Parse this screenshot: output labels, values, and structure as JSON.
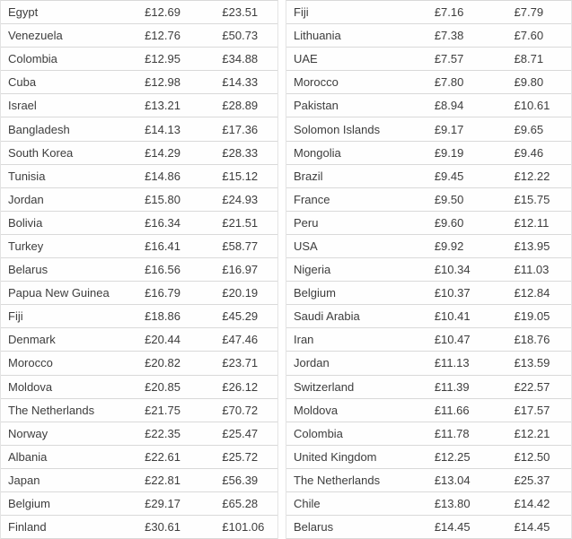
{
  "colors": {
    "background": "#ffffff",
    "row_background": "#fefefe",
    "separator": "#d9d9d9",
    "text": "#3d3d3d"
  },
  "chart_data": [
    {
      "type": "table",
      "name": "left-price-table",
      "currency": "£",
      "rows": [
        [
          "Egypt",
          "£12.69",
          "£23.51"
        ],
        [
          "Venezuela",
          "£12.76",
          "£50.73"
        ],
        [
          "Colombia",
          "£12.95",
          "£34.88"
        ],
        [
          "Cuba",
          "£12.98",
          "£14.33"
        ],
        [
          "Israel",
          "£13.21",
          "£28.89"
        ],
        [
          "Bangladesh",
          "£14.13",
          "£17.36"
        ],
        [
          "South Korea",
          "£14.29",
          "£28.33"
        ],
        [
          "Tunisia",
          "£14.86",
          "£15.12"
        ],
        [
          "Jordan",
          "£15.80",
          "£24.93"
        ],
        [
          "Bolivia",
          "£16.34",
          "£21.51"
        ],
        [
          "Turkey",
          "£16.41",
          "£58.77"
        ],
        [
          "Belarus",
          "£16.56",
          "£16.97"
        ],
        [
          "Papua New Guinea",
          "£16.79",
          "£20.19"
        ],
        [
          "Fiji",
          "£18.86",
          "£45.29"
        ],
        [
          "Denmark",
          "£20.44",
          "£47.46"
        ],
        [
          "Morocco",
          "£20.82",
          "£23.71"
        ],
        [
          "Moldova",
          "£20.85",
          "£26.12"
        ],
        [
          "The Netherlands",
          "£21.75",
          "£70.72"
        ],
        [
          "Norway",
          "£22.35",
          "£25.47"
        ],
        [
          "Albania",
          "£22.61",
          "£25.72"
        ],
        [
          "Japan",
          "£22.81",
          "£56.39"
        ],
        [
          "Belgium",
          "£29.17",
          "£65.28"
        ],
        [
          "Finland",
          "£30.61",
          "£101.06"
        ]
      ]
    },
    {
      "type": "table",
      "name": "right-price-table",
      "currency": "£",
      "rows": [
        [
          "Fiji",
          "£7.16",
          "£7.79"
        ],
        [
          "Lithuania",
          "£7.38",
          "£7.60"
        ],
        [
          "UAE",
          "£7.57",
          "£8.71"
        ],
        [
          "Morocco",
          "£7.80",
          "£9.80"
        ],
        [
          "Pakistan",
          "£8.94",
          "£10.61"
        ],
        [
          "Solomon Islands",
          "£9.17",
          "£9.65"
        ],
        [
          "Mongolia",
          "£9.19",
          "£9.46"
        ],
        [
          "Brazil",
          "£9.45",
          "£12.22"
        ],
        [
          "France",
          "£9.50",
          "£15.75"
        ],
        [
          "Peru",
          "£9.60",
          "£12.11"
        ],
        [
          "USA",
          "£9.92",
          "£13.95"
        ],
        [
          "Nigeria",
          "£10.34",
          "£11.03"
        ],
        [
          "Belgium",
          "£10.37",
          "£12.84"
        ],
        [
          "Saudi Arabia",
          "£10.41",
          "£19.05"
        ],
        [
          "Iran",
          "£10.47",
          "£18.76"
        ],
        [
          "Jordan",
          "£11.13",
          "£13.59"
        ],
        [
          "Switzerland",
          "£11.39",
          "£22.57"
        ],
        [
          "Moldova",
          "£11.66",
          "£17.57"
        ],
        [
          "Colombia",
          "£11.78",
          "£12.21"
        ],
        [
          "United Kingdom",
          "£12.25",
          "£12.50"
        ],
        [
          "The Netherlands",
          "£13.04",
          "£25.37"
        ],
        [
          "Chile",
          "£13.80",
          "£14.42"
        ],
        [
          "Belarus",
          "£14.45",
          "£14.45"
        ]
      ]
    }
  ]
}
